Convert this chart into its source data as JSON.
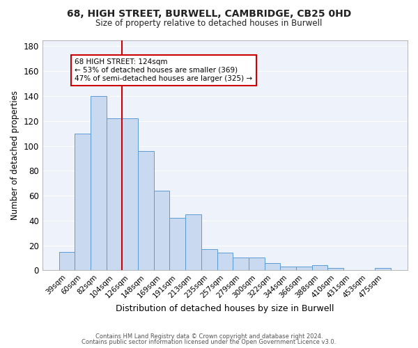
{
  "title1": "68, HIGH STREET, BURWELL, CAMBRIDGE, CB25 0HD",
  "title2": "Size of property relative to detached houses in Burwell",
  "xlabel": "Distribution of detached houses by size in Burwell",
  "ylabel": "Number of detached properties",
  "categories": [
    "39sqm",
    "60sqm",
    "82sqm",
    "104sqm",
    "126sqm",
    "148sqm",
    "169sqm",
    "191sqm",
    "213sqm",
    "235sqm",
    "257sqm",
    "279sqm",
    "300sqm",
    "322sqm",
    "344sqm",
    "366sqm",
    "388sqm",
    "410sqm",
    "431sqm",
    "453sqm",
    "475sqm"
  ],
  "values": [
    15,
    110,
    140,
    122,
    122,
    96,
    64,
    42,
    45,
    17,
    14,
    10,
    10,
    6,
    3,
    3,
    4,
    2,
    0,
    0,
    2
  ],
  "bar_color": "#c9d9f0",
  "bar_edge_color": "#5b9bd5",
  "vline_color": "#cc0000",
  "annotation_text": "68 HIGH STREET: 124sqm\n← 53% of detached houses are smaller (369)\n47% of semi-detached houses are larger (325) →",
  "annotation_box_color": "#ffffff",
  "annotation_box_edge": "#cc0000",
  "ylim": [
    0,
    185
  ],
  "yticks": [
    0,
    20,
    40,
    60,
    80,
    100,
    120,
    140,
    160,
    180
  ],
  "background_color": "#eef3fb",
  "grid_color": "#ffffff",
  "footer1": "Contains HM Land Registry data © Crown copyright and database right 2024.",
  "footer2": "Contains public sector information licensed under the Open Government Licence v3.0."
}
